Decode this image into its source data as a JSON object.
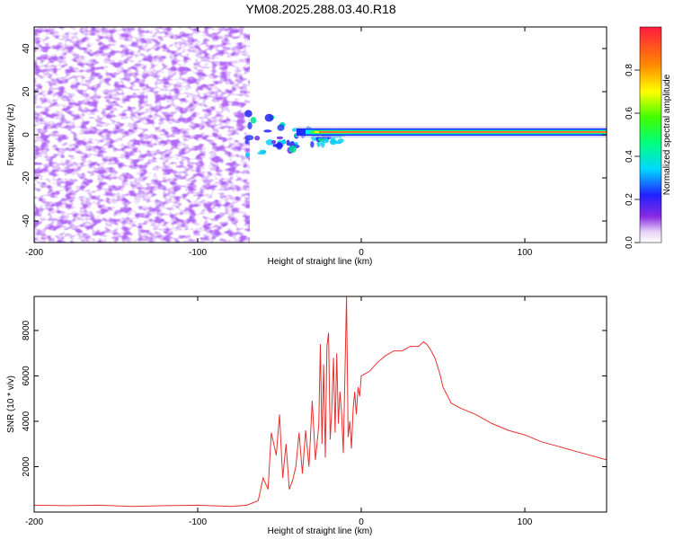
{
  "title": "YM08.2025.288.03.40.R18",
  "chart_data": [
    {
      "type": "heatmap",
      "title": "YM08.2025.288.03.40.R18",
      "xlabel": "Height of straight line (km)",
      "ylabel": "Frequency (Hz)",
      "xlim": [
        -200,
        150
      ],
      "ylim": [
        -50,
        50
      ],
      "x_ticks": [
        "-200",
        "-100",
        "0",
        "100"
      ],
      "y_ticks": [
        "40",
        "20",
        "0",
        "-20",
        "-40"
      ],
      "colorbar": {
        "label": "Normalized spectral amplitude",
        "range": [
          0,
          1
        ],
        "ticks": [
          "0.0",
          "0.2",
          "0.4",
          "0.6",
          "0.8"
        ],
        "colormap": "rainbow (white → purple → blue → cyan → green → yellow → orange → red)"
      },
      "features": {
        "noise_region_x": [
          -200,
          -70
        ],
        "transition_x": [
          -70,
          -30
        ],
        "strong_line_x": [
          -30,
          150
        ],
        "strong_line_frequency": 0
      }
    },
    {
      "type": "line",
      "xlabel": "Height of straight line (km)",
      "ylabel": "SNR (10 * v/v)",
      "xlim": [
        -200,
        150
      ],
      "ylim": [
        0,
        9500
      ],
      "x_ticks": [
        "-200",
        "-100",
        "0",
        "100"
      ],
      "y_ticks": [
        "2000",
        "4000",
        "6000",
        "8000"
      ],
      "color": "#e8312f",
      "series": [
        {
          "x": [
            -200,
            -180,
            -160,
            -140,
            -120,
            -100,
            -80,
            -70,
            -63,
            -60,
            -57,
            -55,
            -52,
            -50,
            -48,
            -46,
            -44,
            -42,
            -40,
            -38,
            -36,
            -34,
            -32,
            -30,
            -28,
            -26,
            -25,
            -24,
            -23,
            -22,
            -21,
            -20,
            -19,
            -18,
            -17,
            -16,
            -15,
            -14,
            -13,
            -12,
            -11,
            -10,
            -9,
            -8,
            -7,
            -6,
            -5,
            -4,
            -3,
            -2,
            -1,
            0,
            5,
            10,
            15,
            20,
            25,
            30,
            35,
            38,
            40,
            42,
            45,
            48,
            50,
            55,
            60,
            70,
            80,
            90,
            100,
            110,
            120,
            130,
            140,
            150
          ],
          "y": [
            300,
            280,
            300,
            250,
            280,
            300,
            250,
            300,
            500,
            1500,
            1000,
            3500,
            2500,
            4300,
            1500,
            3000,
            1000,
            1400,
            2000,
            3500,
            1700,
            3600,
            2000,
            4900,
            2300,
            3800,
            7400,
            3000,
            6500,
            2400,
            7300,
            7900,
            3200,
            4500,
            6800,
            3500,
            7000,
            3900,
            5300,
            4300,
            2600,
            6000,
            9500,
            3300,
            4000,
            2800,
            4500,
            5300,
            4300,
            5500,
            5100,
            6000,
            6200,
            6600,
            6900,
            7100,
            7100,
            7300,
            7300,
            7500,
            7400,
            7200,
            6800,
            6100,
            5500,
            4800,
            4600,
            4300,
            3900,
            3600,
            3400,
            3100,
            2900,
            2700,
            2500,
            2300
          ]
        }
      ]
    }
  ]
}
